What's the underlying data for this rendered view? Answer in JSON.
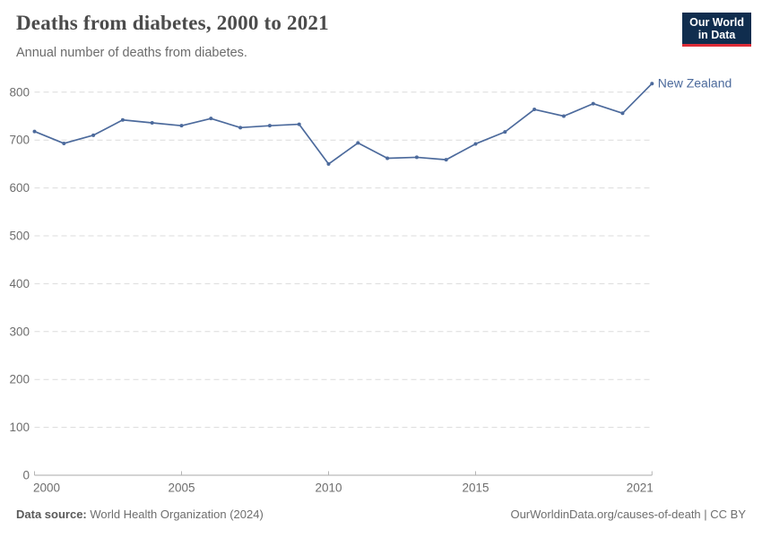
{
  "header": {
    "logo": {
      "line1": "Our World",
      "line2": "in Data",
      "bg_color": "#102d4e",
      "accent_color": "#dd2c37"
    }
  },
  "chart_data": {
    "type": "line",
    "title": "Deaths from diabetes, 2000 to 2021",
    "subtitle": "Annual number of deaths from diabetes.",
    "xlabel": "",
    "ylabel": "",
    "x": [
      2000,
      2001,
      2002,
      2003,
      2004,
      2005,
      2006,
      2007,
      2008,
      2009,
      2010,
      2011,
      2012,
      2013,
      2014,
      2015,
      2016,
      2017,
      2018,
      2019,
      2020,
      2021
    ],
    "series": [
      {
        "name": "New Zealand",
        "color": "#4C6A9C",
        "values": [
          718,
          693,
          710,
          742,
          736,
          730,
          745,
          726,
          730,
          733,
          650,
          694,
          662,
          664,
          659,
          692,
          717,
          764,
          750,
          776,
          756,
          818
        ]
      }
    ],
    "x_ticks": [
      2000,
      2005,
      2010,
      2015,
      2021
    ],
    "y_ticks": [
      0,
      100,
      200,
      300,
      400,
      500,
      600,
      700,
      800
    ],
    "xlim": [
      2000,
      2021
    ],
    "ylim": [
      0,
      800
    ],
    "grid": "horizontal-dashed",
    "legend_position": "end-of-line",
    "colors": {
      "grid": "#dcdcdc",
      "axis": "#a8a8a8",
      "tick": "#b5b5b5",
      "tick_label": "#6e6e6e"
    }
  },
  "footer": {
    "datasource_label": "Data source:",
    "datasource_value": " World Health Organization (2024)",
    "attribution": "OurWorldinData.org/causes-of-death | CC BY"
  }
}
